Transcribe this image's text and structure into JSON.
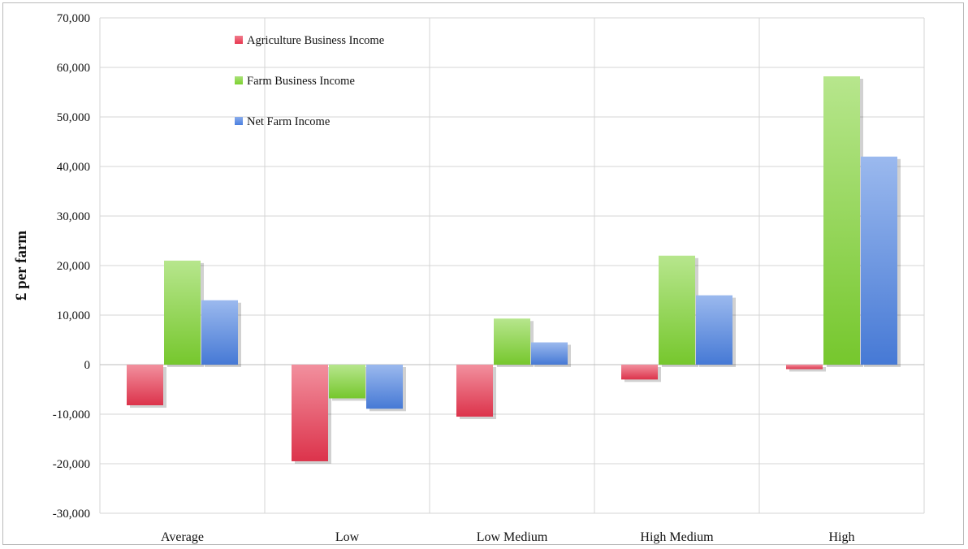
{
  "chart_data": {
    "type": "bar",
    "title": "",
    "xlabel": "",
    "ylabel": "£ per farm",
    "categories": [
      "Average",
      "Low",
      "Low Medium",
      "High Medium",
      "High"
    ],
    "ylim": [
      -30000,
      70000
    ],
    "yticks": [
      70000,
      60000,
      50000,
      40000,
      30000,
      20000,
      10000,
      0,
      -10000,
      -20000,
      -30000
    ],
    "ytick_labels": [
      "70,000",
      "60,000",
      "50,000",
      "40,000",
      "30,000",
      "20,000",
      "10,000",
      "0",
      "-10,000",
      "-20,000",
      "-30,000"
    ],
    "grid": true,
    "legend_position": "top-left",
    "series": [
      {
        "name": "Agriculture Business Income",
        "color": "#e8364f",
        "values": [
          -8200,
          -19500,
          -10500,
          -3000,
          -900
        ]
      },
      {
        "name": "Farm Business Income",
        "color": "#7cd12f",
        "values": [
          21000,
          -6800,
          9300,
          22000,
          58200
        ]
      },
      {
        "name": "Net Farm Income",
        "color": "#4a7fe0",
        "values": [
          13000,
          -8900,
          4500,
          14000,
          42000
        ]
      }
    ]
  }
}
